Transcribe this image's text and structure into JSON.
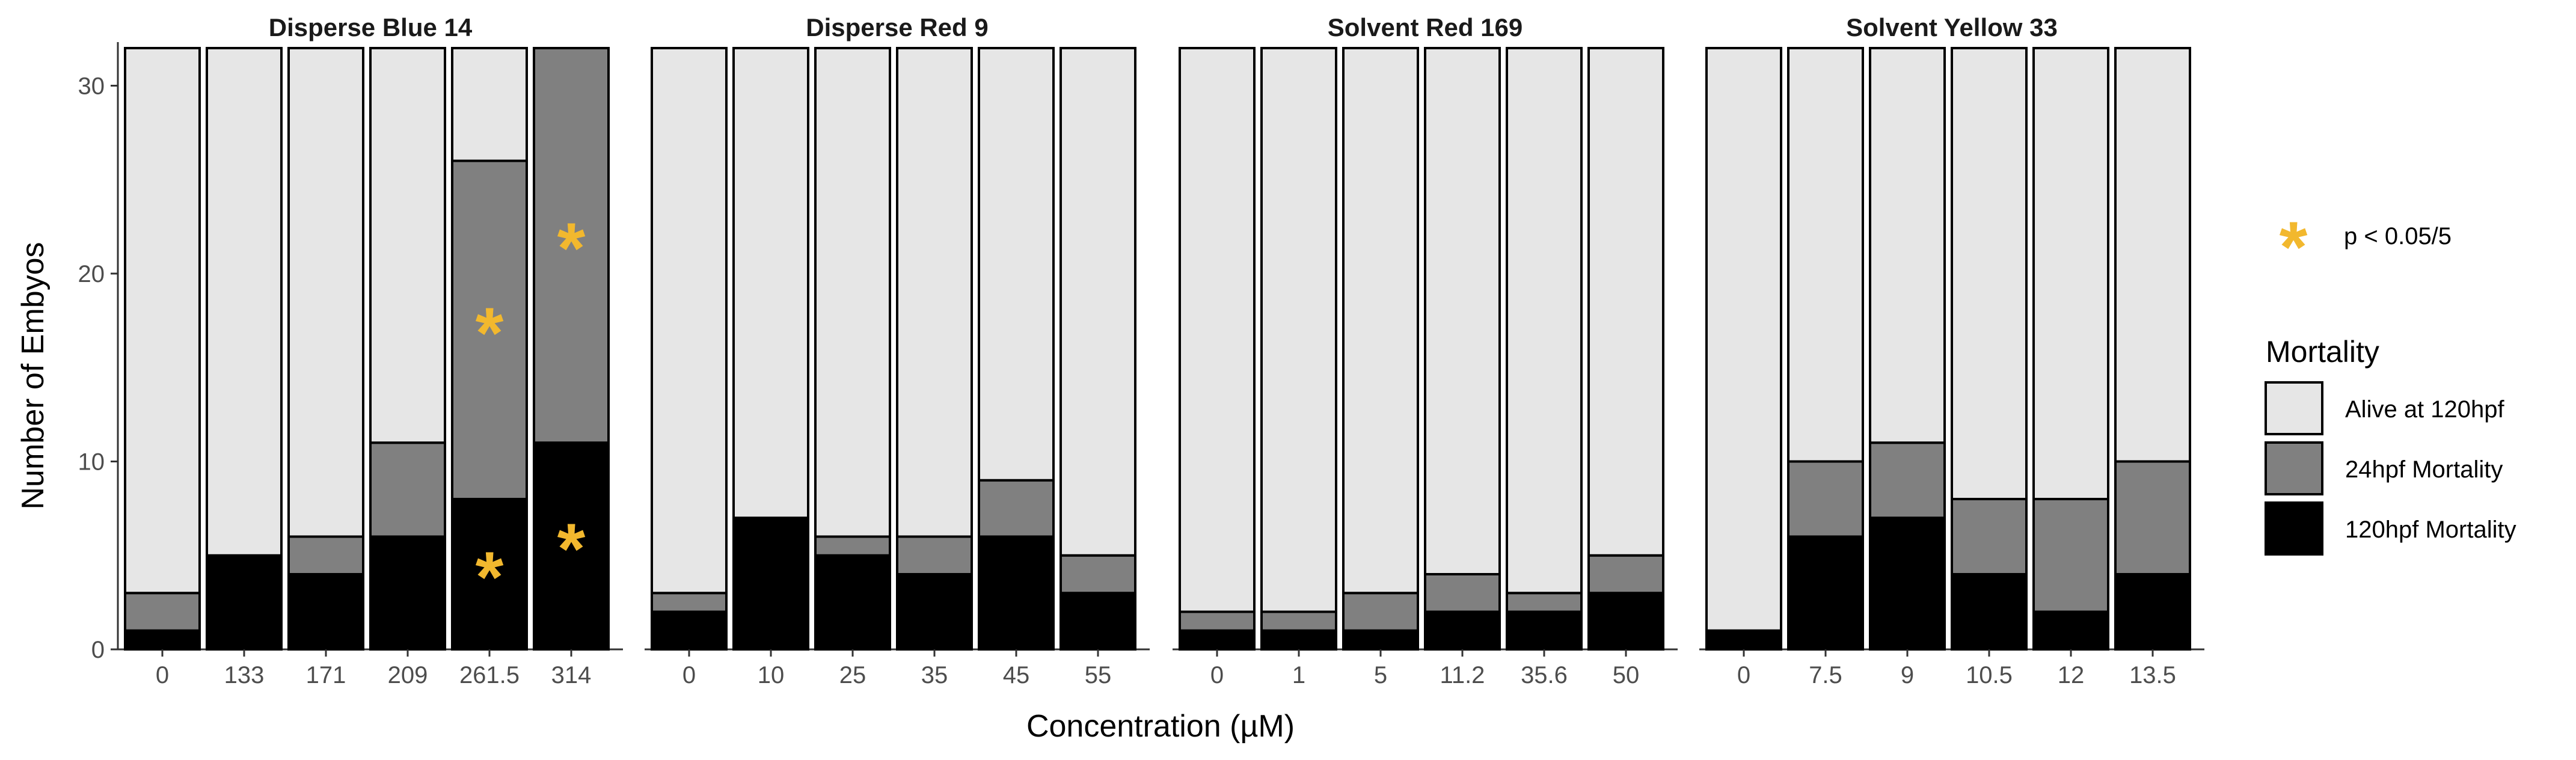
{
  "chart_data": {
    "type": "bar",
    "stacked": true,
    "ylabel": "Number of Embyos",
    "xlabel": "Concentration (µM)",
    "ylim": [
      0,
      32
    ],
    "yticks": [
      0,
      10,
      20,
      30
    ],
    "legend": {
      "title": "Mortality",
      "placement": "right",
      "items": [
        {
          "name": "Alive at 120hpf",
          "color": "#e6e6e6"
        },
        {
          "name": "24hpf Mortality",
          "color": "#808080"
        },
        {
          "name": "120hpf Mortality",
          "color": "#000000"
        }
      ],
      "significance": {
        "symbol": "*",
        "label": "p < 0.05/5",
        "color": "#f2b82e"
      }
    },
    "series_order": [
      "120hpf Mortality",
      "24hpf Mortality",
      "Alive at 120hpf"
    ],
    "total_embryos": 32,
    "panels": [
      {
        "title": "Disperse Blue 14",
        "categories": [
          "0",
          "133",
          "171",
          "209",
          "261.5",
          "314"
        ],
        "series": [
          {
            "name": "120hpf Mortality",
            "values": [
              1,
              5,
              4,
              6,
              8,
              11
            ]
          },
          {
            "name": "24hpf Mortality",
            "values": [
              2,
              0,
              2,
              5,
              18,
              21
            ]
          },
          {
            "name": "Alive at 120hpf",
            "values": [
              29,
              27,
              26,
              21,
              6,
              0
            ]
          }
        ],
        "significance": [
          {
            "category": "261.5",
            "series": "120hpf Mortality"
          },
          {
            "category": "261.5",
            "series": "24hpf Mortality"
          },
          {
            "category": "314",
            "series": "120hpf Mortality"
          },
          {
            "category": "314",
            "series": "24hpf Mortality"
          }
        ]
      },
      {
        "title": "Disperse Red 9",
        "categories": [
          "0",
          "10",
          "25",
          "35",
          "45",
          "55"
        ],
        "series": [
          {
            "name": "120hpf Mortality",
            "values": [
              2,
              7,
              5,
              4,
              6,
              3
            ]
          },
          {
            "name": "24hpf Mortality",
            "values": [
              1,
              0,
              1,
              2,
              3,
              2
            ]
          },
          {
            "name": "Alive at 120hpf",
            "values": [
              29,
              25,
              26,
              26,
              23,
              27
            ]
          }
        ],
        "significance": []
      },
      {
        "title": "Solvent Red 169",
        "categories": [
          "0",
          "1",
          "5",
          "11.2",
          "35.6",
          "50"
        ],
        "series": [
          {
            "name": "120hpf Mortality",
            "values": [
              1,
              1,
              1,
              2,
              2,
              3
            ]
          },
          {
            "name": "24hpf Mortality",
            "values": [
              1,
              1,
              2,
              2,
              1,
              2
            ]
          },
          {
            "name": "Alive at 120hpf",
            "values": [
              30,
              30,
              29,
              28,
              29,
              27
            ]
          }
        ],
        "significance": []
      },
      {
        "title": "Solvent Yellow 33",
        "categories": [
          "0",
          "7.5",
          "9",
          "10.5",
          "12",
          "13.5"
        ],
        "series": [
          {
            "name": "120hpf Mortality",
            "values": [
              1,
              6,
              7,
              4,
              2,
              4
            ]
          },
          {
            "name": "24hpf Mortality",
            "values": [
              0,
              4,
              4,
              4,
              6,
              6
            ]
          },
          {
            "name": "Alive at 120hpf",
            "values": [
              31,
              22,
              21,
              24,
              24,
              22
            ]
          }
        ],
        "significance": []
      }
    ]
  }
}
